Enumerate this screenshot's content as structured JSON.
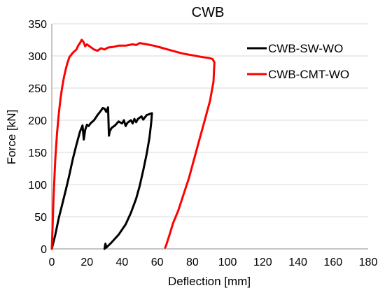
{
  "chart_data": {
    "type": "line",
    "title": "CWB",
    "xlabel": "Deflection [mm]",
    "ylabel": "Force [kN]",
    "xlim": [
      0,
      180
    ],
    "ylim": [
      0,
      350
    ],
    "xticks": [
      0,
      20,
      40,
      60,
      80,
      100,
      120,
      140,
      160,
      180
    ],
    "yticks": [
      0,
      50,
      100,
      150,
      200,
      250,
      300,
      350
    ],
    "grid": "horizontal",
    "legend_position": "top-right",
    "series": [
      {
        "name": "CWB-SW-WO",
        "color": "#000000",
        "points": [
          [
            0,
            0
          ],
          [
            2,
            22
          ],
          [
            4,
            48
          ],
          [
            6,
            70
          ],
          [
            8,
            92
          ],
          [
            10,
            115
          ],
          [
            12,
            140
          ],
          [
            14,
            162
          ],
          [
            16,
            182
          ],
          [
            17.5,
            192
          ],
          [
            18.2,
            170
          ],
          [
            19,
            185
          ],
          [
            20,
            193
          ],
          [
            21,
            191
          ],
          [
            22,
            195
          ],
          [
            24,
            200
          ],
          [
            26,
            208
          ],
          [
            28,
            215
          ],
          [
            29,
            219
          ],
          [
            30,
            218
          ],
          [
            31,
            213
          ],
          [
            32,
            220
          ],
          [
            32.5,
            176
          ],
          [
            33,
            183
          ],
          [
            34,
            188
          ],
          [
            36,
            192
          ],
          [
            38,
            198
          ],
          [
            40,
            195
          ],
          [
            41,
            200
          ],
          [
            42,
            191
          ],
          [
            43,
            196
          ],
          [
            45,
            200
          ],
          [
            46,
            195
          ],
          [
            47,
            202
          ],
          [
            48,
            197
          ],
          [
            49,
            202
          ],
          [
            51,
            206
          ],
          [
            52,
            201
          ],
          [
            54,
            208
          ],
          [
            56,
            210
          ],
          [
            57,
            211
          ],
          [
            56.5,
            195
          ],
          [
            55.5,
            172
          ],
          [
            54,
            148
          ],
          [
            52,
            122
          ],
          [
            50,
            98
          ],
          [
            48,
            78
          ],
          [
            45,
            56
          ],
          [
            42,
            38
          ],
          [
            38,
            22
          ],
          [
            34,
            10
          ],
          [
            31,
            2
          ],
          [
            30.5,
            8
          ],
          [
            30,
            0
          ]
        ]
      },
      {
        "name": "CWB-CMT-WO",
        "color": "#ff0000",
        "points": [
          [
            0,
            0
          ],
          [
            0.5,
            40
          ],
          [
            1,
            80
          ],
          [
            2,
            140
          ],
          [
            3,
            180
          ],
          [
            4,
            210
          ],
          [
            5,
            235
          ],
          [
            6,
            253
          ],
          [
            7,
            268
          ],
          [
            8,
            280
          ],
          [
            9,
            290
          ],
          [
            10,
            298
          ],
          [
            12,
            305
          ],
          [
            14,
            310
          ],
          [
            15,
            316
          ],
          [
            16,
            320
          ],
          [
            17,
            325
          ],
          [
            18,
            322
          ],
          [
            19,
            315
          ],
          [
            20,
            318
          ],
          [
            22,
            314
          ],
          [
            24,
            310
          ],
          [
            26,
            308
          ],
          [
            28,
            312
          ],
          [
            30,
            310
          ],
          [
            32,
            313
          ],
          [
            35,
            314
          ],
          [
            38,
            316
          ],
          [
            42,
            316
          ],
          [
            46,
            318
          ],
          [
            48,
            317
          ],
          [
            50,
            320
          ],
          [
            54,
            318
          ],
          [
            58,
            316
          ],
          [
            62,
            313
          ],
          [
            66,
            310
          ],
          [
            70,
            307
          ],
          [
            74,
            304
          ],
          [
            78,
            302
          ],
          [
            82,
            300
          ],
          [
            86,
            298
          ],
          [
            89,
            297
          ],
          [
            90.5,
            296
          ],
          [
            91.5,
            295
          ],
          [
            92.5,
            290
          ],
          [
            92,
            260
          ],
          [
            90,
            230
          ],
          [
            87,
            200
          ],
          [
            84,
            170
          ],
          [
            81,
            140
          ],
          [
            78,
            110
          ],
          [
            75,
            85
          ],
          [
            72,
            60
          ],
          [
            69,
            40
          ],
          [
            67,
            22
          ],
          [
            65,
            5
          ],
          [
            64.5,
            2
          ]
        ]
      }
    ]
  }
}
